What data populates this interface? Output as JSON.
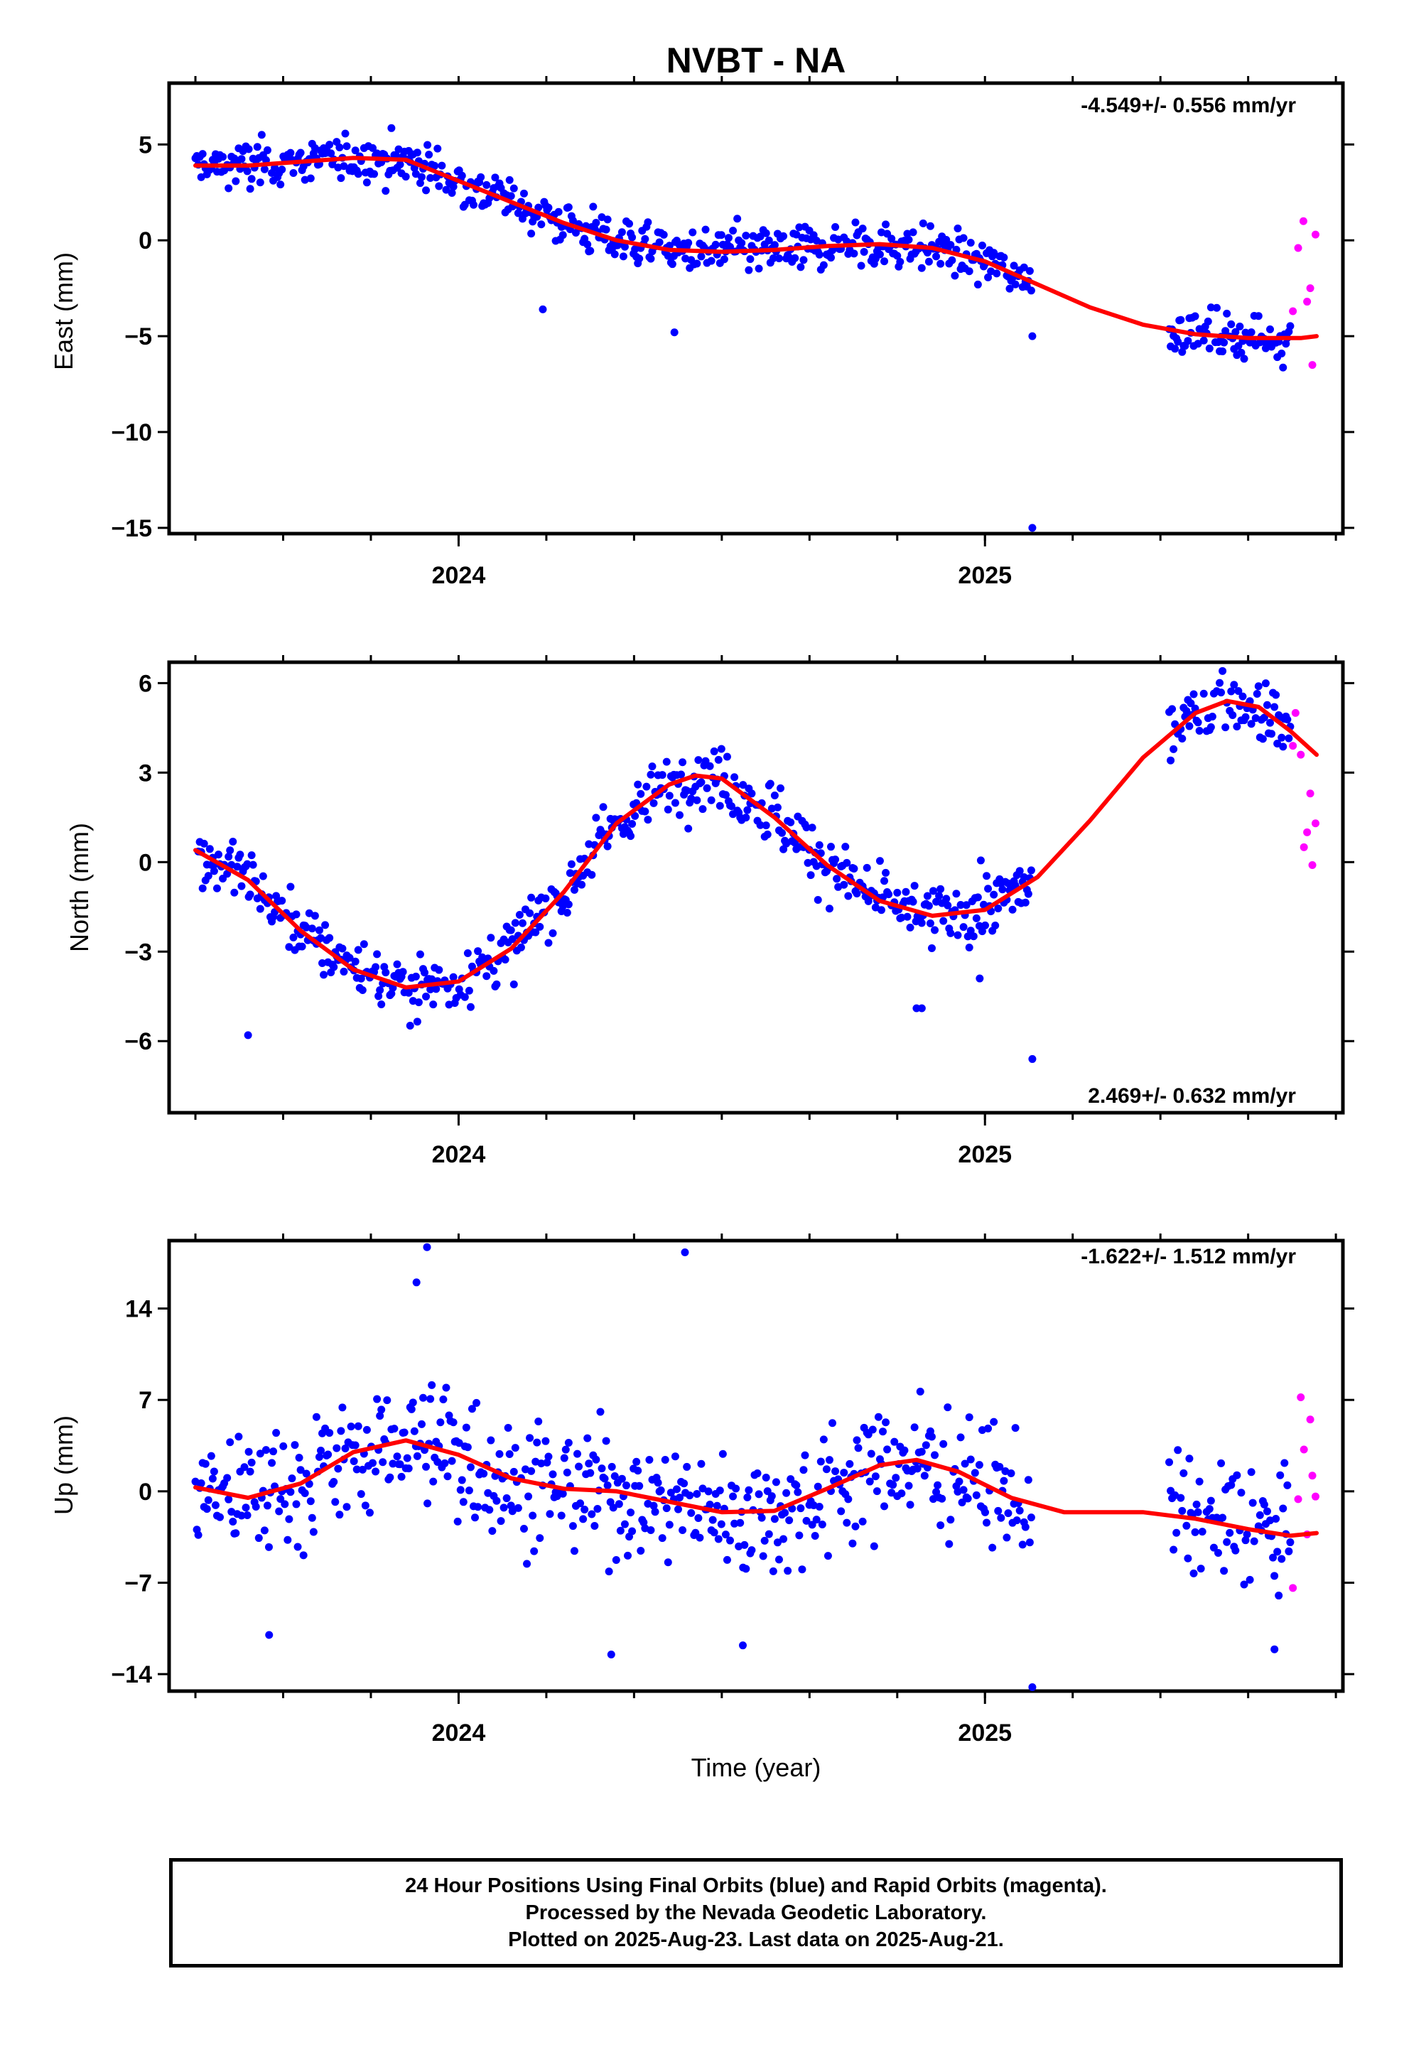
{
  "title": "NVBT - NA",
  "caption": [
    "24 Hour Positions Using Final Orbits (blue) and Rapid Orbits (magenta).",
    "Processed by the Nevada Geodetic Laboratory.",
    "Plotted on 2025-Aug-23. Last data on 2025-Aug-21."
  ],
  "colors": {
    "final": "#0000ff",
    "rapid": "#ff00ff",
    "model": "#ff0000",
    "frame": "#000000"
  },
  "chart_data": [
    {
      "type": "scatter",
      "title": "NVBT - NA",
      "ylabel": "East (mm)",
      "xlabel": "",
      "rate": "-4.549+/- 0.556 mm/yr",
      "xlim": [
        2023.45,
        2025.68
      ],
      "ylim": [
        -15.3,
        8.2
      ],
      "yticks": [
        -15,
        -10,
        -5,
        0,
        5
      ],
      "ytick_labels": [
        "−15",
        "−10",
        "−5",
        "0",
        "5"
      ],
      "xticks": [
        2024,
        2025
      ],
      "xtick_labels": [
        "2024",
        "2025"
      ],
      "final_model": [
        [
          2023.5,
          3.9
        ],
        [
          2023.6,
          3.9
        ],
        [
          2023.7,
          4.1
        ],
        [
          2023.8,
          4.3
        ],
        [
          2023.9,
          4.2
        ],
        [
          2024.0,
          3.1
        ],
        [
          2024.1,
          2.0
        ],
        [
          2024.2,
          0.9
        ],
        [
          2024.3,
          0.0
        ],
        [
          2024.4,
          -0.5
        ],
        [
          2024.5,
          -0.6
        ],
        [
          2024.6,
          -0.5
        ],
        [
          2024.7,
          -0.3
        ],
        [
          2024.8,
          -0.2
        ],
        [
          2024.9,
          -0.4
        ],
        [
          2025.0,
          -1.1
        ],
        [
          2025.1,
          -2.3
        ],
        [
          2025.2,
          -3.5
        ],
        [
          2025.3,
          -4.4
        ],
        [
          2025.4,
          -4.9
        ],
        [
          2025.5,
          -5.1
        ],
        [
          2025.6,
          -5.1
        ],
        [
          2025.63,
          -5.0
        ]
      ],
      "final_segments": [
        [
          2023.5,
          2025.09
        ],
        [
          2025.35,
          2025.58
        ]
      ],
      "rapid_x": [
        2025.585,
        2025.595,
        2025.605,
        2025.612,
        2025.618,
        2025.622,
        2025.628
      ],
      "rapid_y": [
        -3.7,
        -0.4,
        1.0,
        -3.2,
        -2.5,
        -6.5,
        0.3
      ],
      "outliers": [
        [
          2024.41,
          -4.8
        ],
        [
          2024.16,
          -3.6
        ],
        [
          2025.09,
          -15.0
        ],
        [
          2025.09,
          -5.0
        ]
      ],
      "noise": 1.0
    },
    {
      "type": "scatter",
      "ylabel": "North (mm)",
      "xlabel": "",
      "rate": "2.469+/- 0.632 mm/yr",
      "xlim": [
        2023.45,
        2025.68
      ],
      "ylim": [
        -8.4,
        6.7
      ],
      "yticks": [
        -6,
        -3,
        0,
        3,
        6
      ],
      "ytick_labels": [
        "−6",
        "−3",
        "0",
        "3",
        "6"
      ],
      "xticks": [
        2024,
        2025
      ],
      "xtick_labels": [
        "2024",
        "2025"
      ],
      "final_model": [
        [
          2023.5,
          0.4
        ],
        [
          2023.6,
          -0.6
        ],
        [
          2023.7,
          -2.3
        ],
        [
          2023.8,
          -3.6
        ],
        [
          2023.9,
          -4.2
        ],
        [
          2024.0,
          -4.0
        ],
        [
          2024.1,
          -2.9
        ],
        [
          2024.2,
          -1.0
        ],
        [
          2024.3,
          1.3
        ],
        [
          2024.4,
          2.6
        ],
        [
          2024.45,
          2.9
        ],
        [
          2024.5,
          2.8
        ],
        [
          2024.6,
          1.5
        ],
        [
          2024.7,
          -0.1
        ],
        [
          2024.8,
          -1.3
        ],
        [
          2024.9,
          -1.8
        ],
        [
          2025.0,
          -1.6
        ],
        [
          2025.1,
          -0.5
        ],
        [
          2025.2,
          1.4
        ],
        [
          2025.3,
          3.5
        ],
        [
          2025.4,
          5.0
        ],
        [
          2025.46,
          5.4
        ],
        [
          2025.52,
          5.2
        ],
        [
          2025.58,
          4.4
        ],
        [
          2025.63,
          3.6
        ]
      ],
      "final_segments": [
        [
          2023.5,
          2025.09
        ],
        [
          2025.35,
          2025.58
        ]
      ],
      "rapid_x": [
        2025.585,
        2025.59,
        2025.6,
        2025.606,
        2025.612,
        2025.618,
        2025.622,
        2025.628
      ],
      "rapid_y": [
        3.9,
        5.0,
        3.6,
        0.5,
        1.0,
        2.3,
        -0.1,
        1.3
      ],
      "outliers": [
        [
          2023.6,
          -5.8
        ],
        [
          2024.88,
          -4.9
        ],
        [
          2024.87,
          -4.9
        ],
        [
          2025.09,
          -6.6
        ],
        [
          2024.99,
          -3.9
        ]
      ],
      "noise": 0.9
    },
    {
      "type": "scatter",
      "ylabel": "Up (mm)",
      "xlabel": "Time (year)",
      "rate": "-1.622+/- 1.512 mm/yr",
      "xlim": [
        2023.45,
        2025.68
      ],
      "ylim": [
        -15.3,
        19.2
      ],
      "yticks": [
        -14,
        -7,
        0,
        7,
        14
      ],
      "ytick_labels": [
        "−14",
        "−7",
        "0",
        "7",
        "14"
      ],
      "xticks": [
        2024,
        2025
      ],
      "xtick_labels": [
        "2024",
        "2025"
      ],
      "final_model": [
        [
          2023.5,
          0.3
        ],
        [
          2023.6,
          -0.5
        ],
        [
          2023.7,
          0.6
        ],
        [
          2023.8,
          3.0
        ],
        [
          2023.9,
          3.9
        ],
        [
          2024.0,
          2.8
        ],
        [
          2024.1,
          1.0
        ],
        [
          2024.2,
          0.2
        ],
        [
          2024.3,
          0.0
        ],
        [
          2024.4,
          -0.8
        ],
        [
          2024.5,
          -1.6
        ],
        [
          2024.6,
          -1.5
        ],
        [
          2024.7,
          0.2
        ],
        [
          2024.8,
          2.0
        ],
        [
          2024.87,
          2.4
        ],
        [
          2024.95,
          1.5
        ],
        [
          2025.05,
          -0.5
        ],
        [
          2025.15,
          -1.6
        ],
        [
          2025.3,
          -1.6
        ],
        [
          2025.4,
          -2.1
        ],
        [
          2025.5,
          -2.9
        ],
        [
          2025.58,
          -3.4
        ],
        [
          2025.63,
          -3.2
        ]
      ],
      "final_segments": [
        [
          2023.5,
          2025.09
        ],
        [
          2025.35,
          2025.58
        ]
      ],
      "rapid_x": [
        2025.585,
        2025.595,
        2025.6,
        2025.606,
        2025.612,
        2025.618,
        2025.622,
        2025.628
      ],
      "rapid_y": [
        -7.4,
        -0.6,
        7.2,
        3.2,
        -3.3,
        5.5,
        1.2,
        -0.4
      ],
      "outliers": [
        [
          2023.94,
          18.7
        ],
        [
          2024.43,
          18.3
        ],
        [
          2023.92,
          16.0
        ],
        [
          2025.09,
          -15.0
        ],
        [
          2024.29,
          -12.5
        ],
        [
          2024.54,
          -11.8
        ],
        [
          2025.55,
          -12.1
        ],
        [
          2023.64,
          -11.0
        ]
      ],
      "noise": 4.0
    }
  ]
}
